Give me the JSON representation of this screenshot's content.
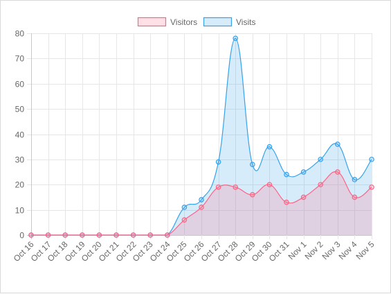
{
  "chart_data": {
    "type": "area",
    "categories": [
      "Oct 16",
      "Oct 17",
      "Oct 18",
      "Oct 19",
      "Oct 20",
      "Oct 21",
      "Oct 22",
      "Oct 23",
      "Oct 24",
      "Oct 25",
      "Oct 26",
      "Oct 27",
      "Oct 28",
      "Oct 29",
      "Oct 30",
      "Oct 31",
      "Nov 1",
      "Nov 2",
      "Nov 3",
      "Nov 4",
      "Nov 5"
    ],
    "series": [
      {
        "name": "Visitors",
        "values": [
          0,
          0,
          0,
          0,
          0,
          0,
          0,
          0,
          0,
          6,
          11,
          19,
          19,
          16,
          20,
          13,
          15,
          20,
          25,
          15,
          19
        ],
        "border_color": "#ff6384",
        "fill_color": "rgba(255,99,132,0.2)"
      },
      {
        "name": "Visits",
        "values": [
          0,
          0,
          0,
          0,
          0,
          0,
          0,
          0,
          0,
          11,
          14,
          29,
          78,
          28,
          35,
          24,
          25,
          30,
          36,
          22,
          30
        ],
        "border_color": "#36a2eb",
        "fill_color": "rgba(54,162,235,0.2)"
      }
    ],
    "ylim": [
      0,
      80
    ],
    "yticks": [
      0,
      10,
      20,
      30,
      40,
      50,
      60,
      70,
      80
    ],
    "grid": true,
    "legend_position": "top",
    "title": "",
    "xlabel": "",
    "ylabel": ""
  }
}
